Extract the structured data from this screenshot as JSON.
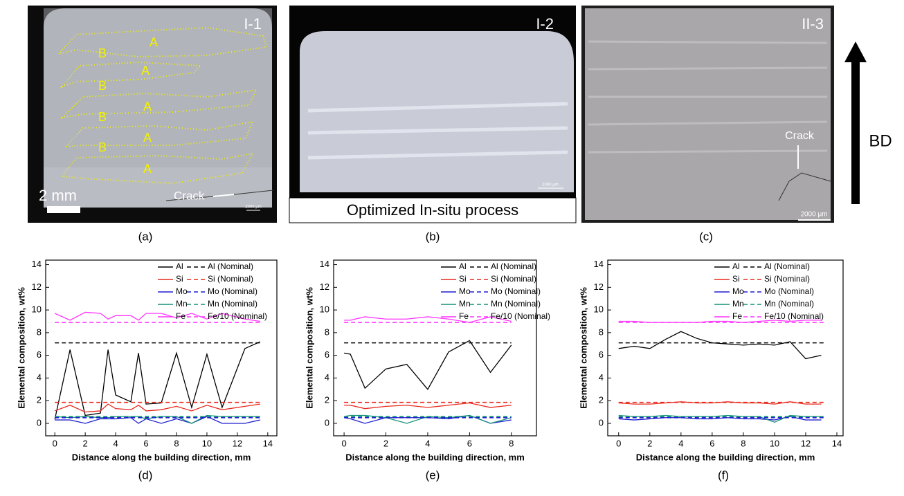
{
  "micrographs": [
    {
      "label": "I-1",
      "caption": "(a)",
      "zone_labels": [
        "A",
        "B",
        "A",
        "B",
        "A",
        "B",
        "A",
        "B",
        "A"
      ],
      "scale_label": "2 mm",
      "crack_label": "Crack",
      "scale_bar": "2000 μm"
    },
    {
      "label": "I-2",
      "caption": "(b)",
      "scale_bar": "2000 μm",
      "process_label": "Optimized In-situ process"
    },
    {
      "label": "II-3",
      "caption": "(c)",
      "crack_label": "Crack",
      "scale_bar": "2000 μm"
    }
  ],
  "build_direction": "BD",
  "chart_data": [
    {
      "type": "line",
      "caption": "(d)",
      "xlabel": "Distance along the building direction, mm",
      "ylabel": "Elemental composition, wt%",
      "xlim": [
        -0.6,
        14.6
      ],
      "ylim": [
        -1.1,
        14.4
      ],
      "xticks": [
        0,
        2,
        4,
        6,
        8,
        10,
        12,
        14
      ],
      "yticks": [
        0,
        2,
        4,
        6,
        8,
        10,
        12,
        14
      ],
      "series": [
        {
          "name": "Al",
          "color": "#000000",
          "x": [
            0,
            1,
            2,
            3,
            3.5,
            4,
            5,
            5.5,
            6,
            7,
            8,
            9,
            10,
            11,
            12.5,
            13.5
          ],
          "values": [
            0.35,
            6.5,
            0.7,
            0.9,
            6.5,
            2.5,
            1.9,
            6.2,
            1.7,
            1.8,
            6.2,
            1.4,
            6.1,
            1.4,
            6.6,
            7.2
          ]
        },
        {
          "name": "Si",
          "color": "#e8291c",
          "x": [
            0,
            1,
            2,
            3,
            3.5,
            4,
            5,
            5.5,
            6,
            7,
            8,
            9,
            10,
            11,
            12.5,
            13.5
          ],
          "values": [
            1.1,
            1.6,
            1.0,
            1.1,
            1.7,
            1.3,
            1.2,
            1.6,
            1.1,
            1.2,
            1.5,
            1.1,
            1.6,
            1.2,
            1.5,
            1.7
          ]
        },
        {
          "name": "Mo",
          "color": "#1f1fcf",
          "x": [
            0,
            1,
            2,
            3,
            3.5,
            4,
            5,
            5.5,
            6,
            7,
            8,
            9,
            10,
            11,
            12.5,
            13.5
          ],
          "values": [
            0.3,
            0.3,
            0.0,
            0.4,
            0.4,
            0.4,
            0.5,
            0.0,
            0.4,
            0.0,
            0.4,
            0.0,
            0.6,
            0.0,
            0.0,
            0.3
          ]
        },
        {
          "name": "Mn",
          "color": "#14907a",
          "x": [
            0,
            1,
            2,
            3,
            3.5,
            4,
            5,
            5.5,
            6,
            7,
            8,
            9,
            10,
            11,
            12.5,
            13.5
          ],
          "values": [
            0.6,
            0.5,
            0.6,
            0.5,
            0.5,
            0.6,
            0.6,
            0.6,
            0.4,
            0.6,
            0.6,
            0.0,
            0.7,
            0.6,
            0.6,
            0.6
          ]
        },
        {
          "name": "Fe",
          "color": "#ff33ff",
          "x": [
            0,
            1,
            2,
            3,
            3.5,
            4,
            5,
            5.5,
            6,
            7,
            8,
            9,
            10,
            11,
            12.5,
            13.5
          ],
          "values": [
            9.7,
            9.1,
            9.8,
            9.7,
            9.2,
            9.5,
            9.5,
            9.1,
            9.7,
            9.7,
            9.3,
            9.7,
            9.2,
            9.7,
            9.2,
            9.0
          ]
        },
        {
          "name": "Al (Nominal)",
          "color": "#000000",
          "dashed": true,
          "x": [
            0,
            13.6
          ],
          "values": [
            7.1,
            7.1
          ]
        },
        {
          "name": "Si (Nominal)",
          "color": "#e8291c",
          "dashed": true,
          "x": [
            0,
            13.6
          ],
          "values": [
            1.85,
            1.85
          ]
        },
        {
          "name": "Mo (Nominal)",
          "color": "#1f1fcf",
          "dashed": true,
          "x": [
            0,
            13.6
          ],
          "values": [
            0.5,
            0.5
          ]
        },
        {
          "name": "Mn (Nominal)",
          "color": "#14907a",
          "dashed": true,
          "x": [
            0,
            13.6
          ],
          "values": [
            0.6,
            0.6
          ]
        },
        {
          "name": "Fe/10 (Nominal)",
          "color": "#ff33ff",
          "dashed": true,
          "x": [
            0,
            13.6
          ],
          "values": [
            8.9,
            8.9
          ]
        }
      ]
    },
    {
      "type": "line",
      "caption": "(e)",
      "xlabel": "Distance along the building direction, mm",
      "ylabel": "Elemental composition, wt%",
      "xlim": [
        -0.5,
        9.2
      ],
      "ylim": [
        -1.1,
        14.4
      ],
      "xticks": [
        0,
        2,
        4,
        6,
        8
      ],
      "yticks": [
        0,
        2,
        4,
        6,
        8,
        10,
        12,
        14
      ],
      "series": [
        {
          "name": "Al",
          "color": "#000000",
          "x": [
            0,
            0.3,
            1,
            2,
            3,
            4,
            5,
            6,
            7,
            8
          ],
          "values": [
            6.2,
            6.1,
            3.1,
            4.8,
            5.2,
            3.0,
            6.3,
            7.3,
            4.5,
            6.9
          ]
        },
        {
          "name": "Si",
          "color": "#e8291c",
          "x": [
            0,
            0.3,
            1,
            2,
            3,
            4,
            5,
            6,
            7,
            8
          ],
          "values": [
            1.6,
            1.6,
            1.3,
            1.5,
            1.6,
            1.4,
            1.6,
            1.8,
            1.4,
            1.6
          ]
        },
        {
          "name": "Mo",
          "color": "#1f1fcf",
          "x": [
            0,
            0.3,
            1,
            2,
            3,
            4,
            5,
            6,
            7,
            8
          ],
          "values": [
            0.5,
            0.4,
            0.0,
            0.5,
            0.5,
            0.5,
            0.4,
            0.7,
            0.0,
            0.3
          ]
        },
        {
          "name": "Mn",
          "color": "#14907a",
          "x": [
            0,
            0.3,
            1,
            2,
            3,
            4,
            5,
            6,
            7,
            8
          ],
          "values": [
            0.6,
            0.7,
            0.7,
            0.5,
            0.0,
            0.6,
            0.5,
            0.7,
            0.0,
            0.5
          ]
        },
        {
          "name": "Fe",
          "color": "#ff33ff",
          "x": [
            0,
            0.3,
            1,
            2,
            3,
            4,
            5,
            6,
            7,
            8
          ],
          "values": [
            9.1,
            9.1,
            9.4,
            9.2,
            9.2,
            9.4,
            9.2,
            8.9,
            9.4,
            9.0
          ]
        },
        {
          "name": "Al (Nominal)",
          "color": "#000000",
          "dashed": true,
          "x": [
            0,
            8
          ],
          "values": [
            7.1,
            7.1
          ]
        },
        {
          "name": "Si (Nominal)",
          "color": "#e8291c",
          "dashed": true,
          "x": [
            0,
            8
          ],
          "values": [
            1.85,
            1.85
          ]
        },
        {
          "name": "Mo (Nominal)",
          "color": "#1f1fcf",
          "dashed": true,
          "x": [
            0,
            8
          ],
          "values": [
            0.5,
            0.5
          ]
        },
        {
          "name": "Mn (Nominal)",
          "color": "#14907a",
          "dashed": true,
          "x": [
            0,
            8
          ],
          "values": [
            0.6,
            0.6
          ]
        },
        {
          "name": "Fe/10 (Nominal)",
          "color": "#ff33ff",
          "dashed": true,
          "x": [
            0,
            8
          ],
          "values": [
            8.9,
            8.9
          ]
        }
      ]
    },
    {
      "type": "line",
      "caption": "(f)",
      "xlabel": "Distance along the building direction, mm",
      "ylabel": "Elemental composition, wt%",
      "xlim": [
        -0.7,
        14.4
      ],
      "ylim": [
        -1.1,
        14.4
      ],
      "xticks": [
        0,
        2,
        4,
        6,
        8,
        10,
        12,
        14
      ],
      "yticks": [
        0,
        2,
        4,
        6,
        8,
        10,
        12,
        14
      ],
      "series": [
        {
          "name": "Al",
          "color": "#000000",
          "x": [
            0,
            1,
            2,
            3,
            4,
            5,
            6,
            7,
            8,
            9,
            10,
            11,
            12,
            13
          ],
          "values": [
            6.6,
            6.8,
            6.6,
            7.4,
            8.1,
            7.5,
            7.1,
            7.0,
            6.9,
            7.0,
            6.9,
            7.2,
            5.7,
            6.0
          ]
        },
        {
          "name": "Si",
          "color": "#e8291c",
          "x": [
            0,
            1,
            2,
            3,
            4,
            5,
            6,
            7,
            8,
            9,
            10,
            11,
            12,
            13
          ],
          "values": [
            1.8,
            1.7,
            1.7,
            1.8,
            1.9,
            1.8,
            1.8,
            1.9,
            1.8,
            1.8,
            1.7,
            1.9,
            1.7,
            1.7
          ]
        },
        {
          "name": "Mo",
          "color": "#1f1fcf",
          "x": [
            0,
            1,
            2,
            3,
            4,
            5,
            6,
            7,
            8,
            9,
            10,
            11,
            12,
            13
          ],
          "values": [
            0.4,
            0.3,
            0.4,
            0.5,
            0.5,
            0.4,
            0.4,
            0.5,
            0.4,
            0.4,
            0.3,
            0.6,
            0.3,
            0.3
          ]
        },
        {
          "name": "Mn",
          "color": "#14907a",
          "x": [
            0,
            1,
            2,
            3,
            4,
            5,
            6,
            7,
            8,
            9,
            10,
            11,
            12,
            13
          ],
          "values": [
            0.7,
            0.6,
            0.6,
            0.7,
            0.6,
            0.6,
            0.6,
            0.7,
            0.6,
            0.6,
            0.1,
            0.7,
            0.6,
            0.6
          ]
        },
        {
          "name": "Fe",
          "color": "#ff33ff",
          "x": [
            0,
            1,
            2,
            3,
            4,
            5,
            6,
            7,
            8,
            9,
            10,
            11,
            12,
            13
          ],
          "values": [
            9.0,
            9.0,
            8.9,
            8.9,
            8.9,
            8.9,
            9.0,
            9.0,
            8.9,
            9.0,
            9.1,
            9.0,
            9.1,
            9.1
          ]
        },
        {
          "name": "Al (Nominal)",
          "color": "#000000",
          "dashed": true,
          "x": [
            0,
            13.2
          ],
          "values": [
            7.1,
            7.1
          ]
        },
        {
          "name": "Si (Nominal)",
          "color": "#e8291c",
          "dashed": true,
          "x": [
            0,
            13.2
          ],
          "values": [
            1.85,
            1.85
          ]
        },
        {
          "name": "Mo (Nominal)",
          "color": "#1f1fcf",
          "dashed": true,
          "x": [
            0,
            13.2
          ],
          "values": [
            0.5,
            0.5
          ]
        },
        {
          "name": "Mn (Nominal)",
          "color": "#14907a",
          "dashed": true,
          "x": [
            0,
            13.2
          ],
          "values": [
            0.6,
            0.6
          ]
        },
        {
          "name": "Fe/10 (Nominal)",
          "color": "#ff33ff",
          "dashed": true,
          "x": [
            0,
            13.2
          ],
          "values": [
            8.9,
            8.9
          ]
        }
      ]
    }
  ]
}
